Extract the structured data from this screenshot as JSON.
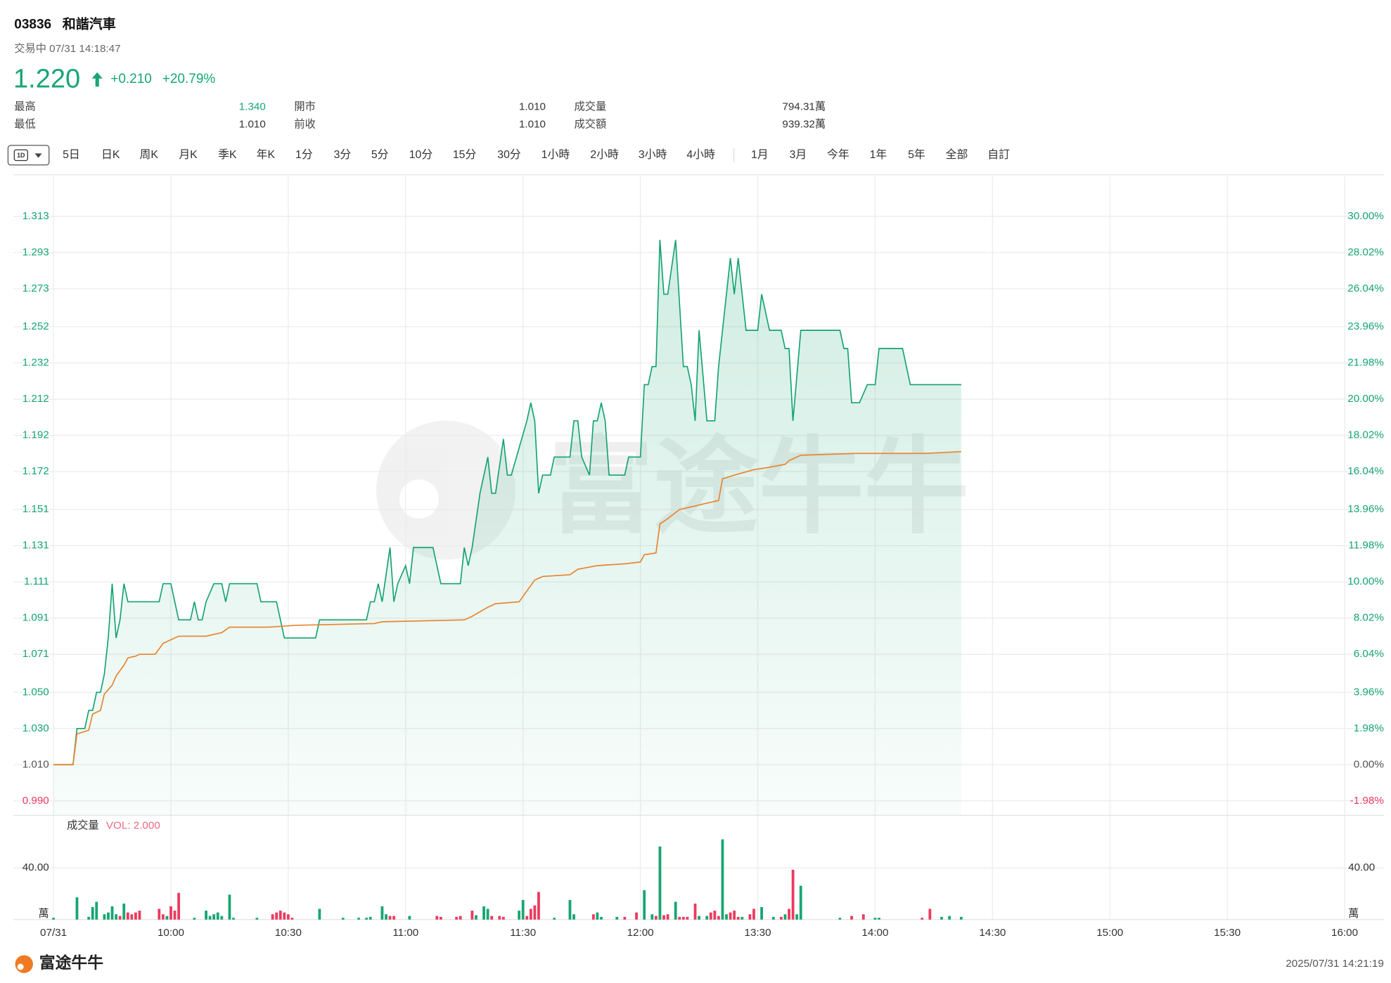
{
  "header": {
    "code": "03836",
    "name": "和諧汽車",
    "status": "交易中 07/31 14:18:47",
    "price": "1.220",
    "change": "+0.210",
    "change_pct": "+20.79%",
    "stats": [
      {
        "label": "最高",
        "value": "1.340",
        "color": "#17a673"
      },
      {
        "label": "開市",
        "value": "1.010"
      },
      {
        "label": "成交量",
        "value": "794.31萬"
      },
      {
        "label": "最低",
        "value": "1.010"
      },
      {
        "label": "前收",
        "value": "1.010"
      },
      {
        "label": "成交額",
        "value": "939.32萬"
      }
    ]
  },
  "toolbar": {
    "selected": "1D",
    "tabs": [
      "5日",
      "日K",
      "周K",
      "月K",
      "季K",
      "年K",
      "1分",
      "3分",
      "5分",
      "10分",
      "15分",
      "30分",
      "1小時",
      "2小時",
      "3小時",
      "4小時",
      "1月",
      "3月",
      "今年",
      "1年",
      "5年",
      "全部",
      "自訂"
    ]
  },
  "chart_data": [
    {
      "type": "line",
      "grid": true,
      "xlim": [
        0,
        330
      ],
      "xticks": [
        {
          "value": 0,
          "label": "07/31"
        },
        {
          "value": 30,
          "label": "10:00"
        },
        {
          "value": 60,
          "label": "10:30"
        },
        {
          "value": 90,
          "label": "11:00"
        },
        {
          "value": 120,
          "label": "11:30"
        },
        {
          "value": 150,
          "label": "12:00"
        },
        {
          "value": 180,
          "label": "13:30"
        },
        {
          "value": 210,
          "label": "14:00"
        },
        {
          "value": 240,
          "label": "14:30"
        },
        {
          "value": 270,
          "label": "15:00"
        },
        {
          "value": 300,
          "label": "15:30"
        },
        {
          "value": 330,
          "label": "16:00"
        }
      ],
      "ylim": [
        0.982,
        1.335
      ],
      "yticks": [
        1.313,
        1.293,
        1.273,
        1.252,
        1.232,
        1.212,
        1.192,
        1.172,
        1.151,
        1.131,
        1.111,
        1.091,
        1.071,
        {
          "value": 1.05,
          "label": "1.050"
        },
        {
          "value": 1.03,
          "label": "1.030"
        },
        {
          "value": 1.01,
          "label": "1.010"
        },
        {
          "value": 0.99,
          "label": "0.990"
        }
      ],
      "y2lim": [
        -2.77,
        32.18
      ],
      "y2ticks": [
        {
          "value": 30,
          "label": "30.00%"
        },
        {
          "value": 28.02,
          "label": "28.02%"
        },
        {
          "value": 26.04,
          "label": "26.04%"
        },
        {
          "value": 23.96,
          "label": "23.96%"
        },
        {
          "value": 21.98,
          "label": "21.98%"
        },
        {
          "value": 20,
          "label": "20.00%"
        },
        {
          "value": 18.02,
          "label": "18.02%"
        },
        {
          "value": 16.04,
          "label": "16.04%"
        },
        {
          "value": 13.96,
          "label": "13.96%"
        },
        {
          "value": 11.98,
          "label": "11.98%"
        },
        {
          "value": 10,
          "label": "10.00%"
        },
        {
          "value": 8.02,
          "label": "8.02%"
        },
        {
          "value": 6.04,
          "label": "6.04%"
        },
        {
          "value": 3.96,
          "label": "3.96%"
        },
        {
          "value": 1.98,
          "label": "1.98%"
        },
        {
          "value": 0,
          "label": "0.00%"
        },
        {
          "value": -1.98,
          "label": "-1.98%"
        }
      ],
      "series": [
        {
          "color": "#14a370",
          "fill": true,
          "x": [
            0,
            5,
            6,
            8,
            9,
            10,
            11,
            12,
            13,
            14,
            15,
            16,
            17,
            18,
            19,
            27,
            28,
            30,
            32,
            35,
            36,
            37,
            38,
            39,
            41,
            43,
            44,
            45,
            52,
            53,
            57,
            58,
            59,
            67,
            68,
            80,
            81,
            82,
            83,
            84,
            86,
            87,
            88,
            90,
            91,
            92,
            97,
            99,
            104,
            105,
            106,
            107,
            109,
            111,
            112,
            113,
            115,
            116,
            117,
            121,
            122,
            123,
            124,
            125,
            127,
            128,
            132,
            133,
            134,
            135,
            137,
            138,
            139,
            140,
            141,
            142,
            146,
            147,
            150,
            151,
            152,
            153,
            154,
            155,
            156,
            157,
            159,
            161,
            162,
            163,
            164,
            165,
            167,
            169,
            170,
            171,
            173,
            174,
            175,
            177,
            180,
            181,
            183,
            186,
            187,
            188,
            189,
            191,
            201,
            202,
            203,
            204,
            206,
            208,
            210,
            211,
            217,
            219,
            232
          ],
          "values": [
            1.01,
            1.01,
            1.03,
            1.03,
            1.04,
            1.04,
            1.05,
            1.05,
            1.06,
            1.08,
            1.11,
            1.08,
            1.09,
            1.11,
            1.1,
            1.1,
            1.11,
            1.11,
            1.09,
            1.09,
            1.1,
            1.09,
            1.09,
            1.1,
            1.11,
            1.11,
            1.1,
            1.11,
            1.11,
            1.1,
            1.1,
            1.09,
            1.08,
            1.08,
            1.09,
            1.09,
            1.1,
            1.1,
            1.11,
            1.1,
            1.13,
            1.1,
            1.11,
            1.12,
            1.11,
            1.13,
            1.13,
            1.11,
            1.11,
            1.13,
            1.12,
            1.13,
            1.16,
            1.18,
            1.16,
            1.16,
            1.19,
            1.17,
            1.17,
            1.2,
            1.21,
            1.2,
            1.16,
            1.17,
            1.17,
            1.18,
            1.18,
            1.2,
            1.2,
            1.18,
            1.17,
            1.2,
            1.2,
            1.21,
            1.2,
            1.17,
            1.17,
            1.18,
            1.18,
            1.22,
            1.22,
            1.23,
            1.23,
            1.3,
            1.27,
            1.27,
            1.3,
            1.23,
            1.23,
            1.22,
            1.2,
            1.25,
            1.2,
            1.2,
            1.23,
            1.25,
            1.29,
            1.27,
            1.29,
            1.25,
            1.25,
            1.27,
            1.25,
            1.25,
            1.24,
            1.24,
            1.2,
            1.25,
            1.25,
            1.24,
            1.24,
            1.21,
            1.21,
            1.22,
            1.22,
            1.24,
            1.24,
            1.22,
            1.22
          ]
        },
        {
          "color": "#e8832c",
          "x": [
            0,
            5,
            6,
            9,
            10,
            12,
            13,
            15,
            16,
            17,
            18,
            19,
            21,
            22,
            26,
            28,
            32,
            39,
            43,
            45,
            55,
            62,
            82,
            84,
            105,
            107,
            111,
            113,
            119,
            121,
            123,
            125,
            132,
            134,
            139,
            146,
            150,
            151,
            154,
            155,
            157,
            160,
            164,
            166,
            170,
            171,
            174,
            179,
            182,
            187,
            188,
            191,
            205,
            223,
            232
          ],
          "values": [
            1.01,
            1.01,
            1.027,
            1.029,
            1.038,
            1.04,
            1.049,
            1.054,
            1.059,
            1.062,
            1.065,
            1.069,
            1.07,
            1.071,
            1.071,
            1.077,
            1.081,
            1.081,
            1.083,
            1.086,
            1.086,
            1.087,
            1.088,
            1.089,
            1.09,
            1.092,
            1.097,
            1.099,
            1.1,
            1.106,
            1.112,
            1.114,
            1.115,
            1.118,
            1.12,
            1.121,
            1.122,
            1.126,
            1.127,
            1.143,
            1.146,
            1.151,
            1.153,
            1.154,
            1.156,
            1.168,
            1.17,
            1.173,
            1.174,
            1.176,
            1.178,
            1.181,
            1.182,
            1.182,
            1.183
          ]
        }
      ]
    },
    {
      "type": "bar",
      "title": "成交量",
      "annotation": "VOL: 2.000",
      "unit": "萬",
      "xlim": [
        0,
        330
      ],
      "ylim": [
        0,
        80
      ],
      "yticks": [
        {
          "value": 40,
          "label": "40.00"
        }
      ],
      "x": [
        0,
        6,
        9,
        10,
        11,
        13,
        14,
        15,
        16,
        17,
        18,
        19,
        20,
        21,
        22,
        27,
        28,
        29,
        30,
        31,
        32,
        36,
        39,
        40,
        41,
        42,
        43,
        45,
        46,
        52,
        56,
        57,
        58,
        59,
        60,
        61,
        68,
        74,
        78,
        80,
        81,
        84,
        85,
        86,
        87,
        91,
        98,
        99,
        103,
        104,
        107,
        108,
        110,
        111,
        112,
        114,
        115,
        119,
        120,
        121,
        122,
        123,
        124,
        128,
        132,
        133,
        138,
        139,
        140,
        144,
        146,
        149,
        151,
        153,
        154,
        155,
        156,
        157,
        159,
        160,
        161,
        162,
        164,
        165,
        167,
        168,
        169,
        170,
        171,
        172,
        173,
        174,
        175,
        176,
        178,
        179,
        181,
        184,
        186,
        187,
        188,
        189,
        190,
        191,
        201,
        204,
        207,
        210,
        211,
        222,
        224,
        227,
        229,
        232
      ],
      "values": [
        1.4,
        17.2,
        2.1,
        9.7,
        13.8,
        4.1,
        5.5,
        10.3,
        4.1,
        2.8,
        12.4,
        5.5,
        4.1,
        5.5,
        6.9,
        8.3,
        4.1,
        2.8,
        10.3,
        6.9,
        20.7,
        1.4,
        6.9,
        2.8,
        4.1,
        5.5,
        2.8,
        19.3,
        1.4,
        1.4,
        4.1,
        5.5,
        6.9,
        5.5,
        4.1,
        1.4,
        8.3,
        1.4,
        1.4,
        1.4,
        2.1,
        10.3,
        4.1,
        2.8,
        2.8,
        2.8,
        2.8,
        2.1,
        2.1,
        2.8,
        6.9,
        3.4,
        10.3,
        8.3,
        2.8,
        2.8,
        2.1,
        6.9,
        15.2,
        2.8,
        8.3,
        11.0,
        21.4,
        1.4,
        15.2,
        4.1,
        4.1,
        5.5,
        2.1,
        2.1,
        2.1,
        5.5,
        22.8,
        4.1,
        2.8,
        56.6,
        3.4,
        4.1,
        13.8,
        2.1,
        2.1,
        2.1,
        12.4,
        2.8,
        2.8,
        5.5,
        6.9,
        2.8,
        62.1,
        4.1,
        5.5,
        6.9,
        2.1,
        2.1,
        4.1,
        8.3,
        9.7,
        2.1,
        2.1,
        4.1,
        8.3,
        38.6,
        4.1,
        26.2,
        1.4,
        2.8,
        4.1,
        1.4,
        1.4,
        1.4,
        8.3,
        2.1,
        2.8,
        2.1
      ],
      "colors": [
        "#17a673",
        "#17a673",
        "#17a673",
        "#17a673",
        "#17a673",
        "#17a673",
        "#17a673",
        "#17a673",
        "#17a673",
        "#eb3b5f",
        "#17a673",
        "#eb3b5f",
        "#eb3b5f",
        "#eb3b5f",
        "#eb3b5f",
        "#eb3b5f",
        "#eb3b5f",
        "#17a673",
        "#eb3b5f",
        "#eb3b5f",
        "#eb3b5f",
        "#17a673",
        "#17a673",
        "#17a673",
        "#17a673",
        "#17a673",
        "#17a673",
        "#17a673",
        "#17a673",
        "#17a673",
        "#eb3b5f",
        "#eb3b5f",
        "#eb3b5f",
        "#eb3b5f",
        "#eb3b5f",
        "#eb3b5f",
        "#17a673",
        "#17a673",
        "#17a673",
        "#17a673",
        "#17a673",
        "#17a673",
        "#17a673",
        "#eb3b5f",
        "#eb3b5f",
        "#17a673",
        "#eb3b5f",
        "#eb3b5f",
        "#eb3b5f",
        "#eb3b5f",
        "#eb3b5f",
        "#17a673",
        "#17a673",
        "#17a673",
        "#eb3b5f",
        "#eb3b5f",
        "#eb3b5f",
        "#17a673",
        "#17a673",
        "#eb3b5f",
        "#eb3b5f",
        "#eb3b5f",
        "#eb3b5f",
        "#17a673",
        "#17a673",
        "#17a673",
        "#eb3b5f",
        "#17a673",
        "#17a673",
        "#17a673",
        "#eb3b5f",
        "#eb3b5f",
        "#17a673",
        "#17a673",
        "#eb3b5f",
        "#17a673",
        "#eb3b5f",
        "#eb3b5f",
        "#17a673",
        "#eb3b5f",
        "#eb3b5f",
        "#eb3b5f",
        "#eb3b5f",
        "#17a673",
        "#17a673",
        "#eb3b5f",
        "#eb3b5f",
        "#eb3b5f",
        "#17a673",
        "#17a673",
        "#eb3b5f",
        "#eb3b5f",
        "#eb3b5f",
        "#17a673",
        "#eb3b5f",
        "#eb3b5f",
        "#17a673",
        "#17a673",
        "#eb3b5f",
        "#17a673",
        "#eb3b5f",
        "#eb3b5f",
        "#17a673",
        "#17a673",
        "#17a673",
        "#eb3b5f",
        "#eb3b5f",
        "#17a673",
        "#17a673",
        "#eb3b5f",
        "#eb3b5f",
        "#17a673",
        "#17a673",
        "#17a673"
      ]
    }
  ],
  "watermark": "富途牛牛",
  "footer": {
    "brand": "富途牛牛",
    "timestamp": "2025/07/31 14:21:19"
  }
}
